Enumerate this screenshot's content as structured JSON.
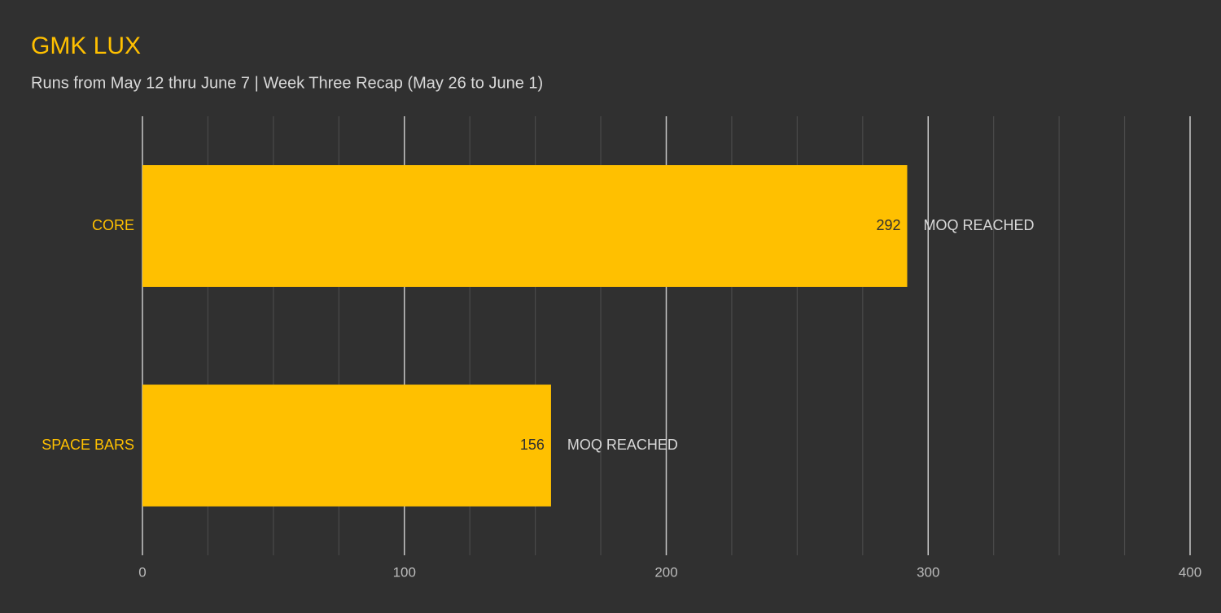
{
  "chart_data": {
    "type": "bar",
    "orientation": "horizontal",
    "title": "GMK LUX",
    "subtitle": "Runs from May 12 thru June 7 | Week Three Recap (May 26 to June 1)",
    "categories": [
      "CORE",
      "SPACE BARS"
    ],
    "values": [
      292,
      156
    ],
    "annotations": [
      "MOQ REACHED",
      "MOQ REACHED"
    ],
    "color": "#ffc000",
    "xlim": [
      0,
      400
    ],
    "xticks": [
      0,
      100,
      200,
      300,
      400
    ],
    "minor_xticks": [
      25,
      50,
      75,
      125,
      150,
      175,
      225,
      250,
      275,
      325,
      350,
      375
    ],
    "grid": true
  }
}
